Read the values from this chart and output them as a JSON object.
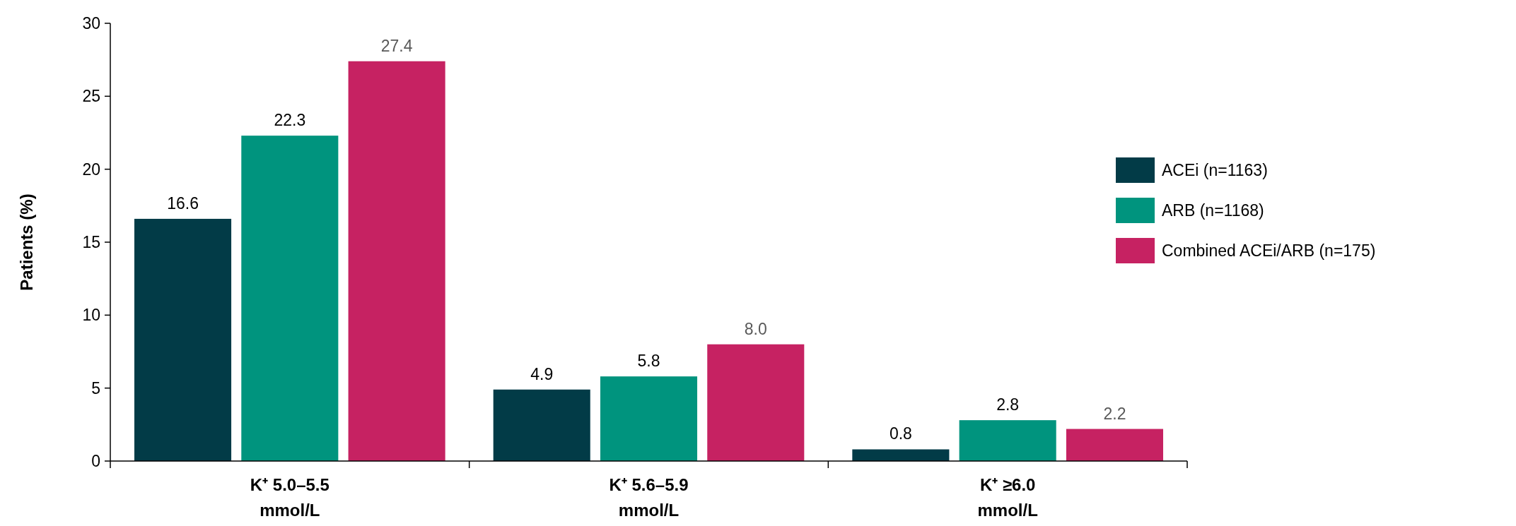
{
  "chart_data": {
    "type": "bar",
    "ylabel": "Patients (%)",
    "categories": [
      "K⁺ 5.0–5.5 mmol/L",
      "K⁺ 5.6–5.9 mmol/L",
      "K⁺ ≥6.0 mmol/L"
    ],
    "series": [
      {
        "name": "ACEi (n=1163)",
        "color": "#023b47",
        "values": [
          16.6,
          4.9,
          0.8
        ],
        "value_labels": [
          "16.6",
          "4.9",
          "0.8"
        ]
      },
      {
        "name": "ARB (n=1168)",
        "color": "#00947e",
        "values": [
          22.3,
          5.8,
          2.8
        ],
        "value_labels": [
          "22.3",
          "5.8",
          "2.8"
        ]
      },
      {
        "name": "Combined ACEi/ARB (n=175)",
        "color": "#c62262",
        "values": [
          27.4,
          8.0,
          2.2
        ],
        "value_labels": [
          "27.4",
          "8.0",
          "2.2"
        ]
      }
    ],
    "ylim": [
      0,
      30
    ],
    "yticks": [
      0,
      5,
      10,
      15,
      20,
      25,
      30
    ],
    "legend": "top right"
  }
}
